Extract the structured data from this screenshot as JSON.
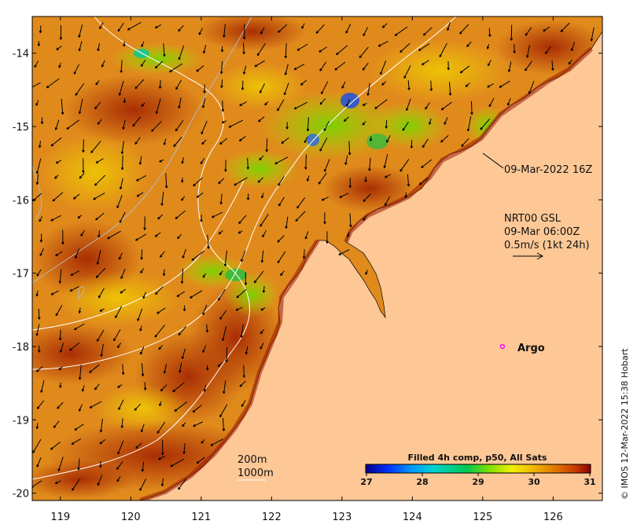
{
  "map": {
    "region": "North-West Australia coast",
    "x_ticks": [
      "119",
      "120",
      "121",
      "122",
      "123",
      "124",
      "125",
      "126"
    ],
    "y_ticks": [
      "-14",
      "-15",
      "-16",
      "-17",
      "-18",
      "-19",
      "-20"
    ],
    "lon_range": [
      118.6,
      126.7
    ],
    "lat_range": [
      -20.1,
      -13.5
    ],
    "colors": {
      "land": "#fdc896",
      "frame": "#000000",
      "contour": "#ffffff"
    }
  },
  "annotations": {
    "sst_timestamp": "09-Mar-2022 16Z",
    "current_product": "NRT00 GSL",
    "current_time": "09-Mar 06:00Z",
    "current_scale": "0.5m/s (1kt 24h)",
    "argo_label": "Argo",
    "argo_position": {
      "lon": 125.28,
      "lat": -18.0
    },
    "depth_200": "200m",
    "depth_1000": "1000m"
  },
  "colorbar": {
    "title": "Filled 4h comp, p50, All Sats",
    "ticks": [
      "27",
      "28",
      "29",
      "30",
      "31"
    ],
    "colors": [
      "#00008b",
      "#0050ff",
      "#00c8ff",
      "#00d060",
      "#80e000",
      "#f0f000",
      "#f0b000",
      "#e07000",
      "#c83c00",
      "#8b0000"
    ]
  },
  "credit": "© IMOS 12-Mar-2022 15:38 Hobart"
}
